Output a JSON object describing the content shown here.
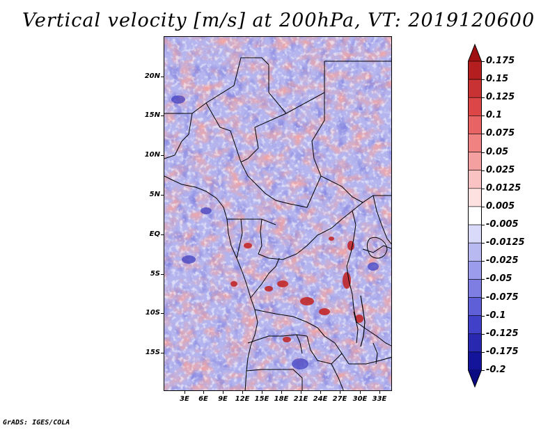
{
  "title": "Vertical velocity [m/s] at 200hPa, VT: 2019120600",
  "footer": "GrADS: IGES/COLA",
  "map": {
    "lat_labels": [
      "20N",
      "15N",
      "10N",
      "5N",
      "EQ",
      "5S",
      "10S",
      "15S"
    ],
    "lon_labels": [
      "3E",
      "6E",
      "9E",
      "12E",
      "15E",
      "18E",
      "21E",
      "24E",
      "27E",
      "30E",
      "33E"
    ],
    "ocean_color": "#b9b9ef",
    "positive_color": "#f2a0a0",
    "negative_color": "#8f8fe6"
  },
  "colorbar": {
    "labels": [
      "0.175",
      "0.15",
      "0.125",
      "0.1",
      "0.075",
      "0.05",
      "0.025",
      "0.0125",
      "0.005",
      "-0.005",
      "-0.0125",
      "-0.025",
      "-0.05",
      "-0.075",
      "-0.1",
      "-0.125",
      "-0.175",
      "-0.2"
    ],
    "colors": [
      "#a01010",
      "#b41e1e",
      "#c83232",
      "#dc4646",
      "#e86464",
      "#f08282",
      "#f5a0a0",
      "#fac3c3",
      "#fde1e1",
      "#ffffff",
      "#d9d9fa",
      "#b9b9f2",
      "#9c9cec",
      "#7d7de2",
      "#5f5fd8",
      "#4040c8",
      "#2828b0",
      "#14149a",
      "#0a0a82"
    ]
  }
}
